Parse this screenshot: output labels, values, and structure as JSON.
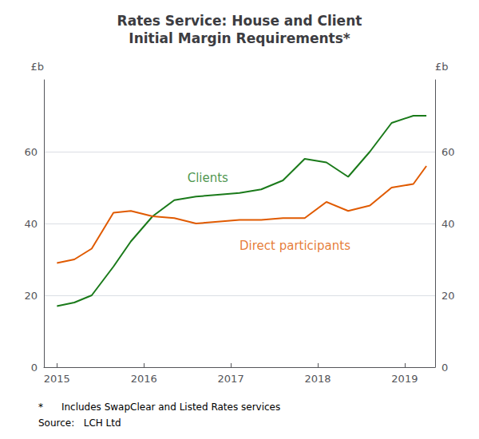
{
  "chart_data": {
    "type": "line",
    "title": "Rates Service: House and Client\nInitial Margin Requirements*",
    "x": [
      2015.0,
      2015.2,
      2015.4,
      2015.65,
      2015.85,
      2016.1,
      2016.35,
      2016.6,
      2016.85,
      2017.1,
      2017.35,
      2017.6,
      2017.85,
      2018.1,
      2018.35,
      2018.6,
      2018.85,
      2019.1,
      2019.25
    ],
    "series": [
      {
        "color": "#1a7a1a",
        "values": [
          17,
          18,
          20,
          28,
          35,
          42,
          46.5,
          47.5,
          48,
          48.5,
          49.5,
          52,
          58,
          57,
          53,
          60,
          68,
          70,
          70
        ]
      },
      {
        "color": "#e05a00",
        "values": [
          29,
          30,
          33,
          43,
          43.5,
          42,
          41.5,
          40,
          40.5,
          41,
          41,
          41.5,
          41.5,
          46,
          43.5,
          45,
          50,
          51,
          56
        ]
      }
    ],
    "annotations": [
      {
        "text": "Clients",
        "x": 2016.5,
        "y": 51,
        "color": "#1a7a1a"
      },
      {
        "text": "Direct participants",
        "x": 2017.1,
        "y": 35.5,
        "color": "#e05a00"
      }
    ],
    "xlim": [
      2014.85,
      2019.35
    ],
    "xticks": [
      2015,
      2016,
      2017,
      2018,
      2019
    ],
    "ylim": [
      0,
      80
    ],
    "yticks": [
      0,
      20,
      40,
      60
    ],
    "y2lim": [
      0,
      80
    ],
    "y2ticks": [
      0,
      20,
      40,
      60
    ],
    "ylabel": "£b",
    "y2label": "£b",
    "grid": true,
    "footnote": "*      Includes SwapClear and Listed Rates services",
    "source": "Source:   LCH Ltd"
  }
}
